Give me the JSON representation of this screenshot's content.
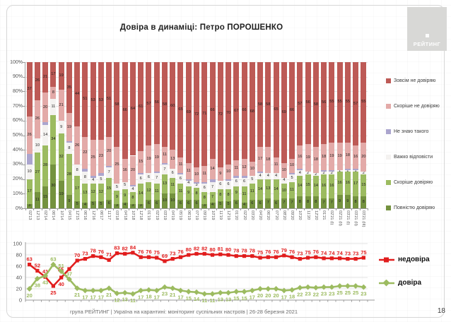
{
  "header": {
    "title": "Довіра в динаміці: Петро ПОРОШЕНКО",
    "logo_text": "РЕЙТИНГ"
  },
  "footer": {
    "source_line": "група РЕЙТИНГ | Україна на карантині: моніторинг суспільних настроїв | 26-28 березня 2021",
    "page_number": "18"
  },
  "colors": {
    "bar_dark_red": "#bd5a56",
    "bar_pink": "#e3aaa8",
    "bar_purple": "#aba5ce",
    "bar_gray": "#f4f2f0",
    "bar_light_green": "#9cbb60",
    "bar_dark_green": "#74923f",
    "line_red": "#e11d1d",
    "line_green": "#9cbb60",
    "grid": "#e3e3e3",
    "axis": "#9b9b9b",
    "axis_text": "#555555"
  },
  "chart_data": [
    {
      "type": "bar",
      "stacked": true,
      "ylim": [
        0,
        100
      ],
      "yticks": [
        0,
        10,
        20,
        30,
        40,
        50,
        60,
        70,
        80,
        90,
        100
      ],
      "ytick_suffix": "%",
      "grid": true,
      "legend_position": "right",
      "categories": [
        "02'13",
        "12'13",
        "02'14",
        "06'14",
        "10'14",
        "04'15",
        "12'15",
        "06'16",
        "12'16",
        "06'17",
        "11'17",
        "03'18",
        "04'18",
        "10'18",
        "12'18",
        "01'19",
        "02'19",
        "03'19",
        "04'19",
        "05'19",
        "06'19",
        "07'19",
        "09'19",
        "10'19",
        "11'19",
        "12'19",
        "01'20",
        "02'20",
        "03'20",
        "04'20",
        "06'20",
        "07'20",
        "08'20",
        "09'20",
        "10'20",
        "11'20",
        "12'20",
        "01'21",
        "02'21 (І)",
        "02'21 (ІІ)",
        "03'21 (І)",
        "03'21 (ІІ)",
        "03'21 (ІІІ)"
      ],
      "series": [
        {
          "name": "Повністю довіряю",
          "color_key": "bar_dark_green",
          "labels_shown": true,
          "values": [
            3,
            11,
            15,
            30,
            19,
            9,
            5,
            4,
            5,
            5,
            6,
            3,
            4,
            3,
            3,
            6,
            6,
            10,
            10,
            6,
            6,
            6,
            3,
            4,
            5,
            5,
            6,
            4,
            6,
            6,
            7,
            6,
            7,
            7,
            8,
            8,
            8,
            7,
            7,
            9,
            9,
            8,
            8
          ]
        },
        {
          "name": "Скоріше довіряю",
          "color_key": "bar_light_green",
          "labels_shown": true,
          "values": [
            17,
            27,
            28,
            34,
            32,
            28,
            17,
            13,
            12,
            12,
            15,
            9,
            9,
            8,
            14,
            12,
            11,
            13,
            11,
            11,
            9,
            8,
            8,
            7,
            8,
            8,
            9,
            11,
            11,
            14,
            13,
            14,
            10,
            11,
            14,
            15,
            14,
            16,
            16,
            16,
            16,
            17,
            15
          ]
        },
        {
          "name": "Важко відповісти",
          "color_key": "bar_gray",
          "labels_shown": true,
          "values": [
            10,
            10,
            14,
            11,
            9,
            8,
            8,
            8,
            4,
            5,
            7,
            5,
            5,
            4,
            6,
            6,
            7,
            7,
            6,
            6,
            4,
            3,
            6,
            7,
            6,
            6,
            6,
            6,
            5,
            4,
            4,
            4,
            4,
            5,
            4,
            2,
            2,
            2,
            2,
            1,
            1,
            1,
            2
          ]
        },
        {
          "name": "Не знаю такого",
          "color_key": "bar_purple",
          "labels_shown": false,
          "values": [
            7,
            0,
            2,
            0,
            0,
            1,
            0,
            2,
            1,
            2,
            1,
            0,
            0,
            1,
            1,
            0,
            1,
            1,
            0,
            1,
            1,
            1,
            1,
            2,
            0,
            1,
            1,
            1,
            0,
            1,
            0,
            0,
            0,
            1,
            1,
            0,
            0,
            1,
            1,
            0,
            1,
            1,
            0
          ]
        },
        {
          "name": "Скоріше не довіряю",
          "color_key": "bar_pink",
          "labels_shown": true,
          "values": [
            26,
            26,
            20,
            8,
            21,
            19,
            26,
            22,
            25,
            23,
            20,
            25,
            16,
            20,
            15,
            19,
            19,
            11,
            13,
            11,
            11,
            10,
            11,
            14,
            9,
            10,
            11,
            12,
            10,
            17,
            18,
            11,
            10,
            10,
            16,
            19,
            18,
            18,
            19,
            19,
            18,
            16,
            20
          ]
        },
        {
          "name": "Зовсім не довіряю",
          "color_key": "bar_dark_red",
          "labels_shown": true,
          "values": [
            37,
            26,
            21,
            17,
            19,
            35,
            44,
            51,
            53,
            53,
            51,
            58,
            66,
            64,
            61,
            57,
            56,
            58,
            60,
            65,
            69,
            72,
            71,
            66,
            72,
            70,
            67,
            66,
            68,
            58,
            58,
            65,
            69,
            66,
            57,
            56,
            58,
            56,
            55,
            55,
            55,
            57,
            55
          ]
        }
      ],
      "legend_order": [
        "Зовсім не довіряю",
        "Скоріше не довіряю",
        "Не знаю такого",
        "Важко відповісти",
        "Скоріше довіряю",
        "Повністю довіряю"
      ]
    },
    {
      "type": "line",
      "ylim": [
        0,
        100
      ],
      "yticks": [
        0,
        20,
        40,
        60,
        80,
        100
      ],
      "grid": true,
      "legend_position": "right",
      "series": [
        {
          "name": "недовіра",
          "color_key": "line_red",
          "marker": "square",
          "values": [
            63,
            52,
            41,
            25,
            40,
            55,
            70,
            73,
            78,
            76,
            71,
            83,
            82,
            84,
            76,
            76,
            75,
            69,
            73,
            76,
            80,
            82,
            82,
            80,
            81,
            80,
            78,
            78,
            78,
            75,
            76,
            76,
            79,
            76,
            73,
            75,
            76,
            74,
            74,
            74,
            73,
            73,
            75
          ]
        },
        {
          "name": "довіра",
          "color_key": "line_green",
          "marker": "diamond",
          "values": [
            20,
            38,
            43,
            63,
            51,
            37,
            21,
            17,
            17,
            17,
            21,
            12,
            13,
            11,
            17,
            18,
            17,
            23,
            21,
            17,
            15,
            14,
            11,
            11,
            13,
            13,
            15,
            15,
            17,
            20,
            20,
            20,
            17,
            18,
            22,
            23,
            22,
            23,
            23,
            25,
            25,
            25,
            23
          ]
        }
      ]
    }
  ]
}
